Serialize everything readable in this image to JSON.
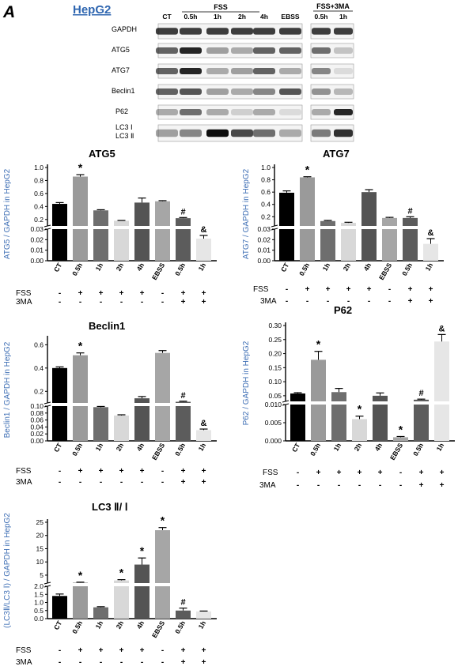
{
  "panel_letter": "A",
  "cell_line_label": "HepG2",
  "blot": {
    "group_labels": [
      "FSS",
      "FSS+3MA"
    ],
    "lanes_main": [
      "CT",
      "0.5h",
      "1h",
      "2h",
      "4h",
      "EBSS"
    ],
    "lanes_3ma": [
      "0.5h",
      "1h"
    ],
    "proteins": [
      "GAPDH",
      "ATG5",
      "ATG7",
      "Beclin1",
      "P62",
      "LC3 Ⅰ",
      "LC3 Ⅱ"
    ]
  },
  "treatment_rows": {
    "fss_label": "FSS",
    "tma_label": "3MA",
    "fss": [
      "-",
      "+",
      "+",
      "+",
      "+",
      "-",
      "+",
      "+"
    ],
    "tma": [
      "-",
      "-",
      "-",
      "-",
      "-",
      "-",
      "+",
      "+"
    ]
  },
  "colors": {
    "bars": [
      "#000000",
      "#9a9a9a",
      "#6e6e6e",
      "#d8d8d8",
      "#545454",
      "#a6a6a6",
      "#5c5c5c",
      "#e6e6e6"
    ],
    "ylabel": "#3f6fb5",
    "title_link": "#2f66b0"
  },
  "chart_data": [
    {
      "type": "bar",
      "title": "ATG5",
      "ylabel": "ATG5 / GAPDH in HepG2",
      "categories": [
        "CT",
        "0.5h",
        "1h",
        "2h",
        "4h",
        "EBSS",
        "0.5h",
        "1h"
      ],
      "values": [
        0.44,
        0.86,
        0.34,
        0.18,
        0.46,
        0.48,
        0.22,
        0.021
      ],
      "errors": [
        0.02,
        0.03,
        0.01,
        0.005,
        0.07,
        0.01,
        0.01,
        0.003
      ],
      "markers": [
        "",
        "*",
        "",
        "",
        "",
        "",
        "#",
        "&"
      ],
      "broken_axis": true,
      "lower_range": [
        0,
        0.03
      ],
      "lower_ticks": [
        "0.00",
        "0.01",
        "0.02",
        "0.03"
      ],
      "upper_range": [
        0.1,
        1.0
      ],
      "upper_ticks": [
        "0.2",
        "0.4",
        "0.6",
        "0.8",
        "1.0"
      ]
    },
    {
      "type": "bar",
      "title": "ATG7",
      "ylabel": "ATG7 / GAPDH in HepG2",
      "categories": [
        "CT",
        "0.5h",
        "1h",
        "2h",
        "4h",
        "EBSS",
        "0.5h",
        "1h"
      ],
      "values": [
        0.59,
        0.84,
        0.13,
        0.1,
        0.6,
        0.18,
        0.18,
        0.016
      ],
      "errors": [
        0.03,
        0.01,
        0.01,
        0.01,
        0.04,
        0.01,
        0.02,
        0.005
      ],
      "markers": [
        "",
        "*",
        "",
        "",
        "",
        "",
        "#",
        "&"
      ],
      "broken_axis": true,
      "lower_range": [
        0,
        0.03
      ],
      "lower_ticks": [
        "0.00",
        "0.01",
        "0.02",
        "0.03"
      ],
      "upper_range": [
        0.05,
        1.0
      ],
      "upper_ticks": [
        "0.2",
        "0.4",
        "0.6",
        "0.8",
        "1.0"
      ]
    },
    {
      "type": "bar",
      "title": "Beclin1",
      "ylabel": "Beclin1 / GAPDH in HepG2",
      "categories": [
        "CT",
        "0.5h",
        "1h",
        "2h",
        "4h",
        "EBSS",
        "0.5h",
        "1h"
      ],
      "values": [
        0.4,
        0.51,
        0.097,
        0.073,
        0.14,
        0.53,
        0.11,
        0.031
      ],
      "errors": [
        0.01,
        0.02,
        0.002,
        0.002,
        0.015,
        0.02,
        0.005,
        0.003
      ],
      "markers": [
        "",
        "*",
        "",
        "",
        "",
        "",
        "#",
        "&"
      ],
      "broken_axis": true,
      "lower_range": [
        0,
        0.1
      ],
      "lower_ticks": [
        "0.00",
        "0.02",
        "0.04",
        "0.06",
        "0.08",
        "0.10"
      ],
      "upper_range": [
        0.1,
        0.65
      ],
      "upper_ticks": [
        "0.2",
        "0.4",
        "0.6"
      ]
    },
    {
      "type": "bar",
      "title": "P62",
      "ylabel": "P62 / GAPDH in HepG2",
      "categories": [
        "CT",
        "0.5h",
        "1h",
        "2h",
        "4h",
        "EBSS",
        "0.5h",
        "1h"
      ],
      "values": [
        0.058,
        0.178,
        0.063,
        0.006,
        0.05,
        0.001,
        0.036,
        0.243
      ],
      "errors": [
        0.003,
        0.03,
        0.013,
        0.0008,
        0.01,
        0.0002,
        0.002,
        0.025
      ],
      "markers": [
        "",
        "*",
        "",
        "*",
        "",
        "*",
        "#",
        "&"
      ],
      "broken_axis": true,
      "lower_range": [
        0,
        0.01
      ],
      "lower_ticks": [
        "0.000",
        "0.005",
        "0.010"
      ],
      "upper_range": [
        0.03,
        0.3
      ],
      "upper_ticks": [
        "0.05",
        "0.10",
        "0.15",
        "0.20",
        "0.25",
        "0.30"
      ]
    },
    {
      "type": "bar",
      "title": "LC3 Ⅱ/ Ⅰ",
      "ylabel": "(LC3Ⅱ/LC3 Ⅰ) / GAPDH in HepG2",
      "categories": [
        "CT",
        "0.5h",
        "1h",
        "2h",
        "4h",
        "EBSS",
        "0.5h",
        "1h"
      ],
      "values": [
        1.4,
        2.2,
        0.7,
        3.0,
        9.0,
        22.0,
        0.5,
        0.45
      ],
      "errors": [
        0.12,
        0.15,
        0.04,
        0.3,
        2.5,
        1.0,
        0.15,
        0.02
      ],
      "markers": [
        "",
        "*",
        "",
        "*",
        "*",
        "*",
        "#",
        ""
      ],
      "broken_axis": true,
      "lower_range": [
        0,
        2.0
      ],
      "lower_ticks": [
        "0.0",
        "0.5",
        "1.0",
        "1.5",
        "2.0"
      ],
      "upper_range": [
        2.0,
        25
      ],
      "upper_ticks": [
        "5",
        "10",
        "15",
        "20",
        "25"
      ]
    }
  ]
}
